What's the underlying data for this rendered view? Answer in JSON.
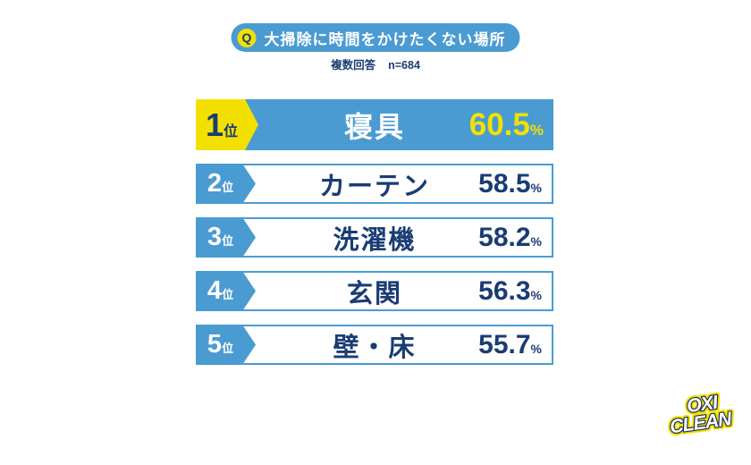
{
  "colors": {
    "blue": "#4A9BD2",
    "yellow": "#F2E100",
    "navy": "#1A3C74",
    "logo-navy": "#1B2D5B"
  },
  "header": {
    "q_badge": "Q",
    "title": "大掃除に時間をかけたくない場所",
    "note_type": "複数回答",
    "note_sample": "n=684"
  },
  "chart_data": {
    "type": "bar",
    "title": "大掃除に時間をかけたくない場所",
    "subtitle": "複数回答 n=684",
    "sample_size": 684,
    "orientation": "horizontal-ranking",
    "categories": [
      "寝具",
      "カーテン",
      "洗濯機",
      "玄関",
      "壁・床"
    ],
    "values": [
      60.5,
      58.5,
      58.2,
      56.3,
      55.7
    ],
    "unit": "%",
    "ranks": [
      "1位",
      "2位",
      "3位",
      "4位",
      "5位"
    ],
    "highlight_index": 0,
    "legend": false,
    "grid": false
  },
  "ranking": {
    "rows": [
      {
        "rank": "1",
        "rank_suffix": "位",
        "label": "寝具",
        "value": "60.5",
        "unit": "%"
      },
      {
        "rank": "2",
        "rank_suffix": "位",
        "label": "カーテン",
        "value": "58.5",
        "unit": "%"
      },
      {
        "rank": "3",
        "rank_suffix": "位",
        "label": "洗濯機",
        "value": "58.2",
        "unit": "%"
      },
      {
        "rank": "4",
        "rank_suffix": "位",
        "label": "玄関",
        "value": "56.3",
        "unit": "%"
      },
      {
        "rank": "5",
        "rank_suffix": "位",
        "label": "壁・床",
        "value": "55.7",
        "unit": "%"
      }
    ]
  },
  "logo": {
    "line1": "OXI",
    "line2": "CLEAN"
  }
}
